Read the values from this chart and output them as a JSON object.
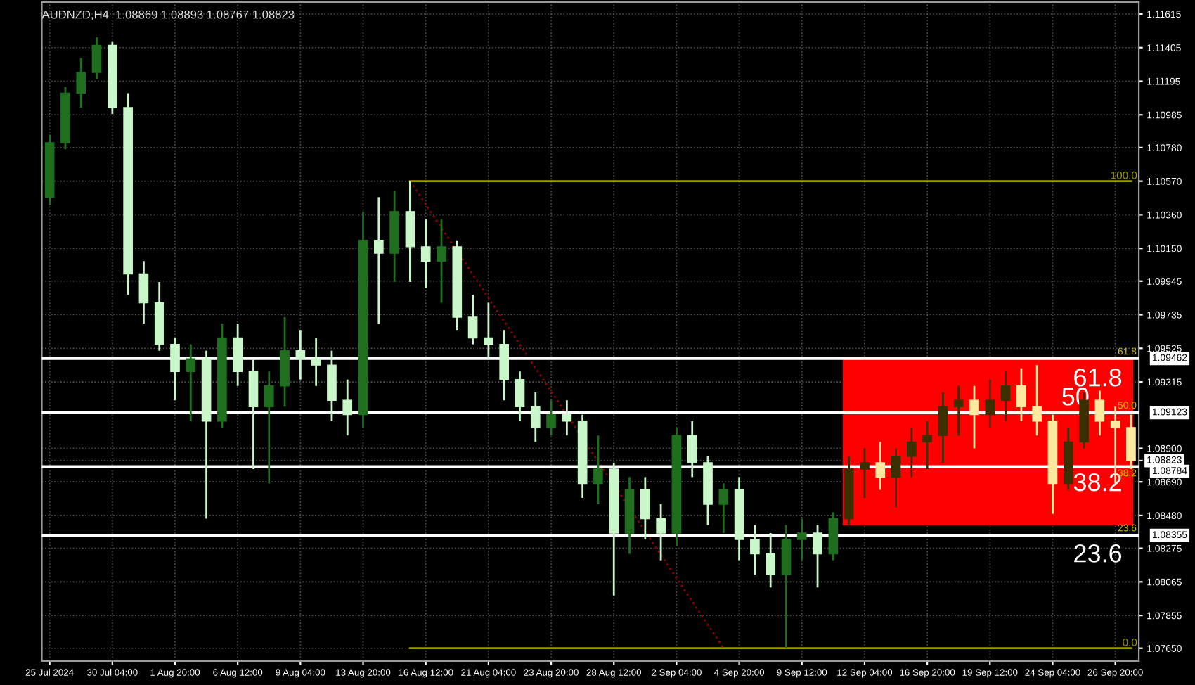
{
  "chart_data": {
    "type": "candlestick",
    "title": "AUDNZD,H4  1.08869 1.08893 1.08767 1.08823",
    "categories": [
      "25 Jul 2024",
      null,
      null,
      null,
      "30 Jul 04:00",
      null,
      null,
      null,
      "1 Aug 20:00",
      null,
      null,
      null,
      "6 Aug 12:00",
      null,
      null,
      null,
      "9 Aug 04:00",
      null,
      null,
      null,
      "13 Aug 20:00",
      null,
      null,
      null,
      "16 Aug 12:00",
      null,
      null,
      null,
      "21 Aug 04:00",
      null,
      null,
      null,
      "23 Aug 20:00",
      null,
      null,
      null,
      "28 Aug 12:00",
      null,
      null,
      null,
      "2 Sep 04:00",
      null,
      null,
      null,
      "4 Sep 20:00",
      null,
      null,
      null,
      "9 Sep 12:00",
      null,
      null,
      null,
      "12 Sep 04:00",
      null,
      null,
      null,
      "16 Sep 20:00",
      null,
      null,
      null,
      "19 Sep 12:00",
      null,
      null,
      null,
      "24 Sep 04:00",
      null,
      null,
      null,
      "26 Sep 20:00",
      null
    ],
    "ohlc": [
      [
        1.1047,
        1.1086,
        1.1042,
        1.1081
      ],
      [
        1.1081,
        1.1116,
        1.1077,
        1.1112
      ],
      [
        1.1112,
        1.1134,
        1.1103,
        1.1125
      ],
      [
        1.1125,
        1.1147,
        1.1121,
        1.1142
      ],
      [
        1.1142,
        1.1144,
        1.1099,
        1.1103
      ],
      [
        1.1103,
        1.1112,
        1.0986,
        1.0999
      ],
      [
        1.0999,
        1.1007,
        1.0968,
        1.0981
      ],
      [
        1.0981,
        1.0994,
        1.0951,
        1.0955
      ],
      [
        1.0955,
        1.0959,
        1.092,
        1.0938
      ],
      [
        1.0938,
        1.0955,
        1.0907,
        1.0946
      ],
      [
        1.0946,
        1.0951,
        1.0846,
        1.0907
      ],
      [
        1.0907,
        1.0968,
        1.0903,
        1.0959
      ],
      [
        1.0959,
        1.0968,
        1.0929,
        1.0938
      ],
      [
        1.0938,
        1.0946,
        1.0877,
        1.0916
      ],
      [
        1.0916,
        1.0938,
        1.0868,
        1.0929
      ],
      [
        1.0929,
        1.0972,
        1.0916,
        1.0951
      ],
      [
        1.0951,
        1.0964,
        1.0933,
        1.0946
      ],
      [
        1.0946,
        1.0959,
        1.0929,
        1.0942
      ],
      [
        1.0942,
        1.0951,
        1.0907,
        1.092
      ],
      [
        1.092,
        1.0933,
        1.0898,
        1.0911
      ],
      [
        1.0911,
        1.1038,
        1.0903,
        1.102
      ],
      [
        1.102,
        1.1047,
        1.0968,
        1.1012
      ],
      [
        1.1012,
        1.1051,
        1.0994,
        1.1038
      ],
      [
        1.1038,
        1.1057,
        1.0994,
        1.1016
      ],
      [
        1.1016,
        1.1033,
        1.099,
        1.1007
      ],
      [
        1.1007,
        1.1033,
        1.0981,
        1.1016
      ],
      [
        1.1016,
        1.102,
        1.0964,
        1.0972
      ],
      [
        1.0972,
        1.0986,
        1.0955,
        1.0959
      ],
      [
        1.0959,
        1.0981,
        1.0946,
        1.0955
      ],
      [
        1.0955,
        1.0964,
        1.092,
        1.0933
      ],
      [
        1.0933,
        1.0938,
        1.0907,
        1.0916
      ],
      [
        1.0916,
        1.0925,
        1.0894,
        1.0903
      ],
      [
        1.0903,
        1.092,
        1.0898,
        1.0911
      ],
      [
        1.0911,
        1.092,
        1.0898,
        1.0907
      ],
      [
        1.0907,
        1.0911,
        1.0859,
        1.0868
      ],
      [
        1.0868,
        1.0898,
        1.0855,
        1.0877
      ],
      [
        1.0877,
        1.0881,
        1.0798,
        1.0837
      ],
      [
        1.0837,
        1.0872,
        1.0824,
        1.0864
      ],
      [
        1.0864,
        1.0872,
        1.0833,
        1.0846
      ],
      [
        1.0846,
        1.0855,
        1.082,
        1.0837
      ],
      [
        1.0837,
        1.0903,
        1.0829,
        1.0898
      ],
      [
        1.0898,
        1.0907,
        1.0872,
        1.0881
      ],
      [
        1.0881,
        1.0885,
        1.0842,
        1.0855
      ],
      [
        1.0855,
        1.0868,
        1.0837,
        1.0864
      ],
      [
        1.0864,
        1.0872,
        1.082,
        1.0833
      ],
      [
        1.0833,
        1.0842,
        1.0811,
        1.0824
      ],
      [
        1.0824,
        1.0837,
        1.0803,
        1.0811
      ],
      [
        1.0811,
        1.0842,
        1.0765,
        1.0833
      ],
      [
        1.0833,
        1.0846,
        1.082,
        1.0837
      ],
      [
        1.0837,
        1.0842,
        1.0803,
        1.0824
      ],
      [
        1.0824,
        1.085,
        1.082,
        1.0846
      ],
      [
        1.0846,
        1.0885,
        1.0842,
        1.0877
      ],
      [
        1.0877,
        1.089,
        1.0859,
        1.0881
      ],
      [
        1.0881,
        1.0894,
        1.0864,
        1.0872
      ],
      [
        1.0872,
        1.089,
        1.0853,
        1.0885
      ],
      [
        1.0885,
        1.0903,
        1.0872,
        1.0894
      ],
      [
        1.0894,
        1.0907,
        1.0877,
        1.0898
      ],
      [
        1.0898,
        1.0925,
        1.0881,
        1.0916
      ],
      [
        1.0916,
        1.0929,
        1.0898,
        1.092
      ],
      [
        1.092,
        1.0929,
        1.089,
        1.0911
      ],
      [
        1.0911,
        1.0933,
        1.0903,
        1.092
      ],
      [
        1.092,
        1.0938,
        1.0907,
        1.0929
      ],
      [
        1.0929,
        1.094,
        1.0907,
        1.0916
      ],
      [
        1.0916,
        1.0942,
        1.0898,
        1.0907
      ],
      [
        1.0907,
        1.0911,
        1.0849,
        1.0868
      ],
      [
        1.0868,
        1.0903,
        1.0864,
        1.0894
      ],
      [
        1.0894,
        1.0925,
        1.089,
        1.092
      ],
      [
        1.092,
        1.0926,
        1.0898,
        1.0907
      ],
      [
        1.0907,
        1.0916,
        1.0868,
        1.0903
      ],
      [
        1.0903,
        1.0911,
        1.0877,
        1.08823
      ]
    ],
    "colors": [
      "#1f6f1f",
      "#1f6f1f",
      "#1f6f1f",
      "#1f6f1f",
      "#c9f7c9",
      "#c9f7c9",
      "#c9f7c9",
      "#c9f7c9",
      "#c9f7c9",
      "#1f6f1f",
      "#c9f7c9",
      "#1f6f1f",
      "#c9f7c9",
      "#c9f7c9",
      "#1f6f1f",
      "#1f6f1f",
      "#c9f7c9",
      "#c9f7c9",
      "#c9f7c9",
      "#c9f7c9",
      "#1f6f1f",
      "#c9f7c9",
      "#1f6f1f",
      "#c9f7c9",
      "#c9f7c9",
      "#1f6f1f",
      "#c9f7c9",
      "#c9f7c9",
      "#c9f7c9",
      "#c9f7c9",
      "#c9f7c9",
      "#c9f7c9",
      "#1f6f1f",
      "#c9f7c9",
      "#c9f7c9",
      "#1f6f1f",
      "#c9f7c9",
      "#1f6f1f",
      "#c9f7c9",
      "#c9f7c9",
      "#1f6f1f",
      "#c9f7c9",
      "#c9f7c9",
      "#1f6f1f",
      "#c9f7c9",
      "#c9f7c9",
      "#c9f7c9",
      "#1f6f1f",
      "#1f6f1f",
      "#c9f7c9",
      "#1f6f1f",
      "#3a3000",
      "#3a3000",
      "#ffe8a0",
      "#3a3000",
      "#3a3000",
      "#3a3000",
      "#3a3000",
      "#3a3000",
      "#ffe8a0",
      "#3a3000",
      "#3a3000",
      "#ffe8a0",
      "#ffe8a0",
      "#ffe8a0",
      "#3a3000",
      "#3a3000",
      "#ffe8a0",
      "#ffe8a0",
      "#ffe8a0"
    ],
    "series": [
      {
        "type": "line",
        "name": "100.0",
        "color": "#9a9a00",
        "line_style": "solid",
        "values": [
          null,
          null,
          null,
          null,
          null,
          null,
          null,
          null,
          null,
          null,
          null,
          null,
          null,
          null,
          null,
          null,
          null,
          null,
          null,
          null,
          null,
          null,
          null,
          1.1057,
          1.1057,
          1.1057,
          1.1057,
          1.1057,
          1.1057,
          1.1057,
          1.1057,
          1.1057,
          1.1057,
          1.1057,
          1.1057,
          1.1057,
          1.1057,
          1.1057,
          1.1057,
          1.1057,
          1.1057,
          1.1057,
          1.1057,
          1.1057,
          1.1057,
          1.1057,
          1.1057,
          1.1057,
          1.1057,
          1.1057,
          1.1057,
          1.1057,
          1.1057,
          1.1057,
          1.1057,
          1.1057,
          1.1057,
          1.1057,
          1.1057,
          1.1057,
          1.1057,
          1.1057,
          1.1057,
          1.1057,
          1.1057,
          1.1057,
          1.1057,
          1.1057,
          1.1057,
          1.1057
        ]
      },
      {
        "type": "line",
        "name": "0.0",
        "color": "#9a9a00",
        "line_style": "solid",
        "values": [
          null,
          null,
          null,
          null,
          null,
          null,
          null,
          null,
          null,
          null,
          null,
          null,
          null,
          null,
          null,
          null,
          null,
          null,
          null,
          null,
          null,
          null,
          null,
          1.0765,
          1.0765,
          1.0765,
          1.0765,
          1.0765,
          1.0765,
          1.0765,
          1.0765,
          1.0765,
          1.0765,
          1.0765,
          1.0765,
          1.0765,
          1.0765,
          1.0765,
          1.0765,
          1.0765,
          1.0765,
          1.0765,
          1.0765,
          1.0765,
          1.0765,
          1.0765,
          1.0765,
          1.0765,
          1.0765,
          1.0765,
          1.0765,
          1.0765,
          1.0765,
          1.0765,
          1.0765,
          1.0765,
          1.0765,
          1.0765,
          1.0765,
          1.0765,
          1.0765,
          1.0765,
          1.0765,
          1.0765,
          1.0765,
          1.0765,
          1.0765,
          1.0765,
          1.0765,
          1.0765
        ]
      },
      {
        "type": "line",
        "color": "#8b0000",
        "line_style": "dotted",
        "values": [
          null,
          null,
          null,
          null,
          null,
          null,
          null,
          null,
          null,
          null,
          null,
          null,
          null,
          null,
          null,
          null,
          null,
          null,
          null,
          null,
          null,
          null,
          null,
          1.1057,
          null,
          null,
          null,
          null,
          null,
          null,
          null,
          null,
          null,
          null,
          null,
          null,
          null,
          null,
          null,
          null,
          null,
          null,
          null,
          1.0765,
          null,
          null,
          null,
          null,
          null,
          null,
          null,
          null,
          null,
          null,
          null,
          null,
          null,
          null,
          null,
          null,
          null,
          null,
          null,
          null,
          null,
          null,
          null,
          null,
          null,
          null
        ]
      }
    ],
    "ylim": [
      1.0757,
      1.1169
    ],
    "yticks": [
      1.11615,
      1.11405,
      1.11195,
      1.10985,
      {
        "value": 1.1078,
        "label": "1.10780"
      },
      {
        "value": 1.1057,
        "label": "1.10570"
      },
      {
        "value": 1.1036,
        "label": "1.10360"
      },
      {
        "value": 1.1015,
        "label": "1.10150"
      },
      1.09945,
      1.09735,
      1.09525,
      1.09315,
      {
        "value": 1.089,
        "label": "1.08900"
      },
      1.08823,
      {
        "value": 1.0869,
        "label": "1.08690"
      },
      {
        "value": 1.0848,
        "label": "1.08480"
      },
      1.08275,
      1.08065,
      1.07855,
      {
        "value": 1.0765,
        "label": "1.07650"
      }
    ],
    "ref_lines": [
      {
        "axis": "y",
        "value": 1.09462,
        "label": "1.09462",
        "color": "#ffffff"
      },
      {
        "axis": "y",
        "value": 1.09123,
        "label": "1.09123",
        "color": "#ffffff"
      },
      {
        "axis": "y",
        "value": 1.08784,
        "label": "1.08784",
        "color": "#ffffff"
      },
      {
        "axis": "y",
        "value": 1.08355,
        "label": "1.08355",
        "color": "#ffffff"
      }
    ],
    "annotations": [
      "61.8",
      "50",
      "38.2",
      "23.6",
      "61.8",
      "50.0",
      "38.2",
      "23.6"
    ],
    "grid": true
  }
}
